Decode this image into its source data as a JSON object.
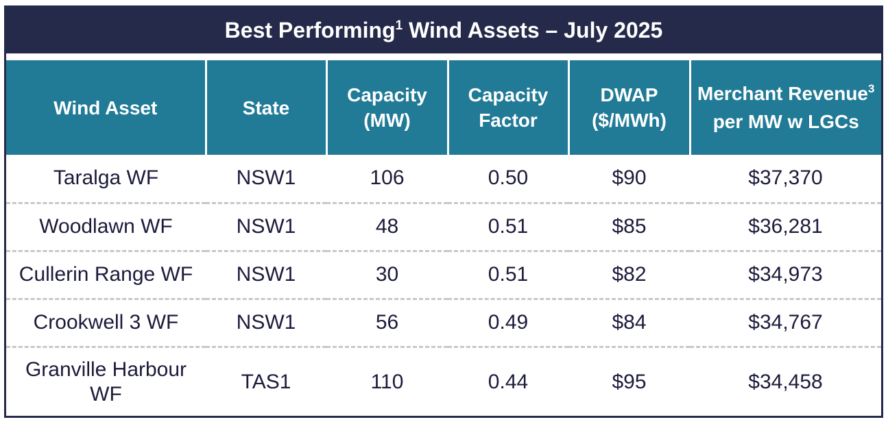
{
  "title": {
    "main": "Best Performing",
    "sup": "1",
    "rest": " Wind Assets – July 2025"
  },
  "columns": [
    {
      "label": "Wind Asset",
      "sup": "",
      "after": ""
    },
    {
      "label": "State",
      "sup": "",
      "after": ""
    },
    {
      "label": "Capacity (MW)",
      "sup": "",
      "after": ""
    },
    {
      "label": "Capacity Factor",
      "sup": "",
      "after": ""
    },
    {
      "label": "DWAP ($/MWh)",
      "sup": "",
      "after": ""
    },
    {
      "label": "Merchant Revenue",
      "sup": "3",
      "after": " per MW w LGCs"
    }
  ],
  "chart_data": {
    "type": "table",
    "title": "Best Performing1 Wind Assets – July 2025",
    "headers": [
      "Wind Asset",
      "State",
      "Capacity (MW)",
      "Capacity Factor",
      "DWAP ($/MWh)",
      "Merchant Revenue3 per MW w LGCs"
    ],
    "rows": [
      [
        "Taralga WF",
        "NSW1",
        "106",
        "0.50",
        "$90",
        "$37,370"
      ],
      [
        "Woodlawn WF",
        "NSW1",
        "48",
        "0.51",
        "$85",
        "$36,281"
      ],
      [
        "Cullerin Range WF",
        "NSW1",
        "30",
        "0.51",
        "$82",
        "$34,973"
      ],
      [
        "Crookwell 3 WF",
        "NSW1",
        "56",
        "0.49",
        "$84",
        "$34,767"
      ],
      [
        "Granville Harbour WF",
        "TAS1",
        "110",
        "0.44",
        "$95",
        "$34,458"
      ]
    ]
  },
  "colors": {
    "title_bg": "#252a4a",
    "header_bg": "#217a96",
    "row_text": "#1b1b3a",
    "divider": "#c8c8c8"
  }
}
